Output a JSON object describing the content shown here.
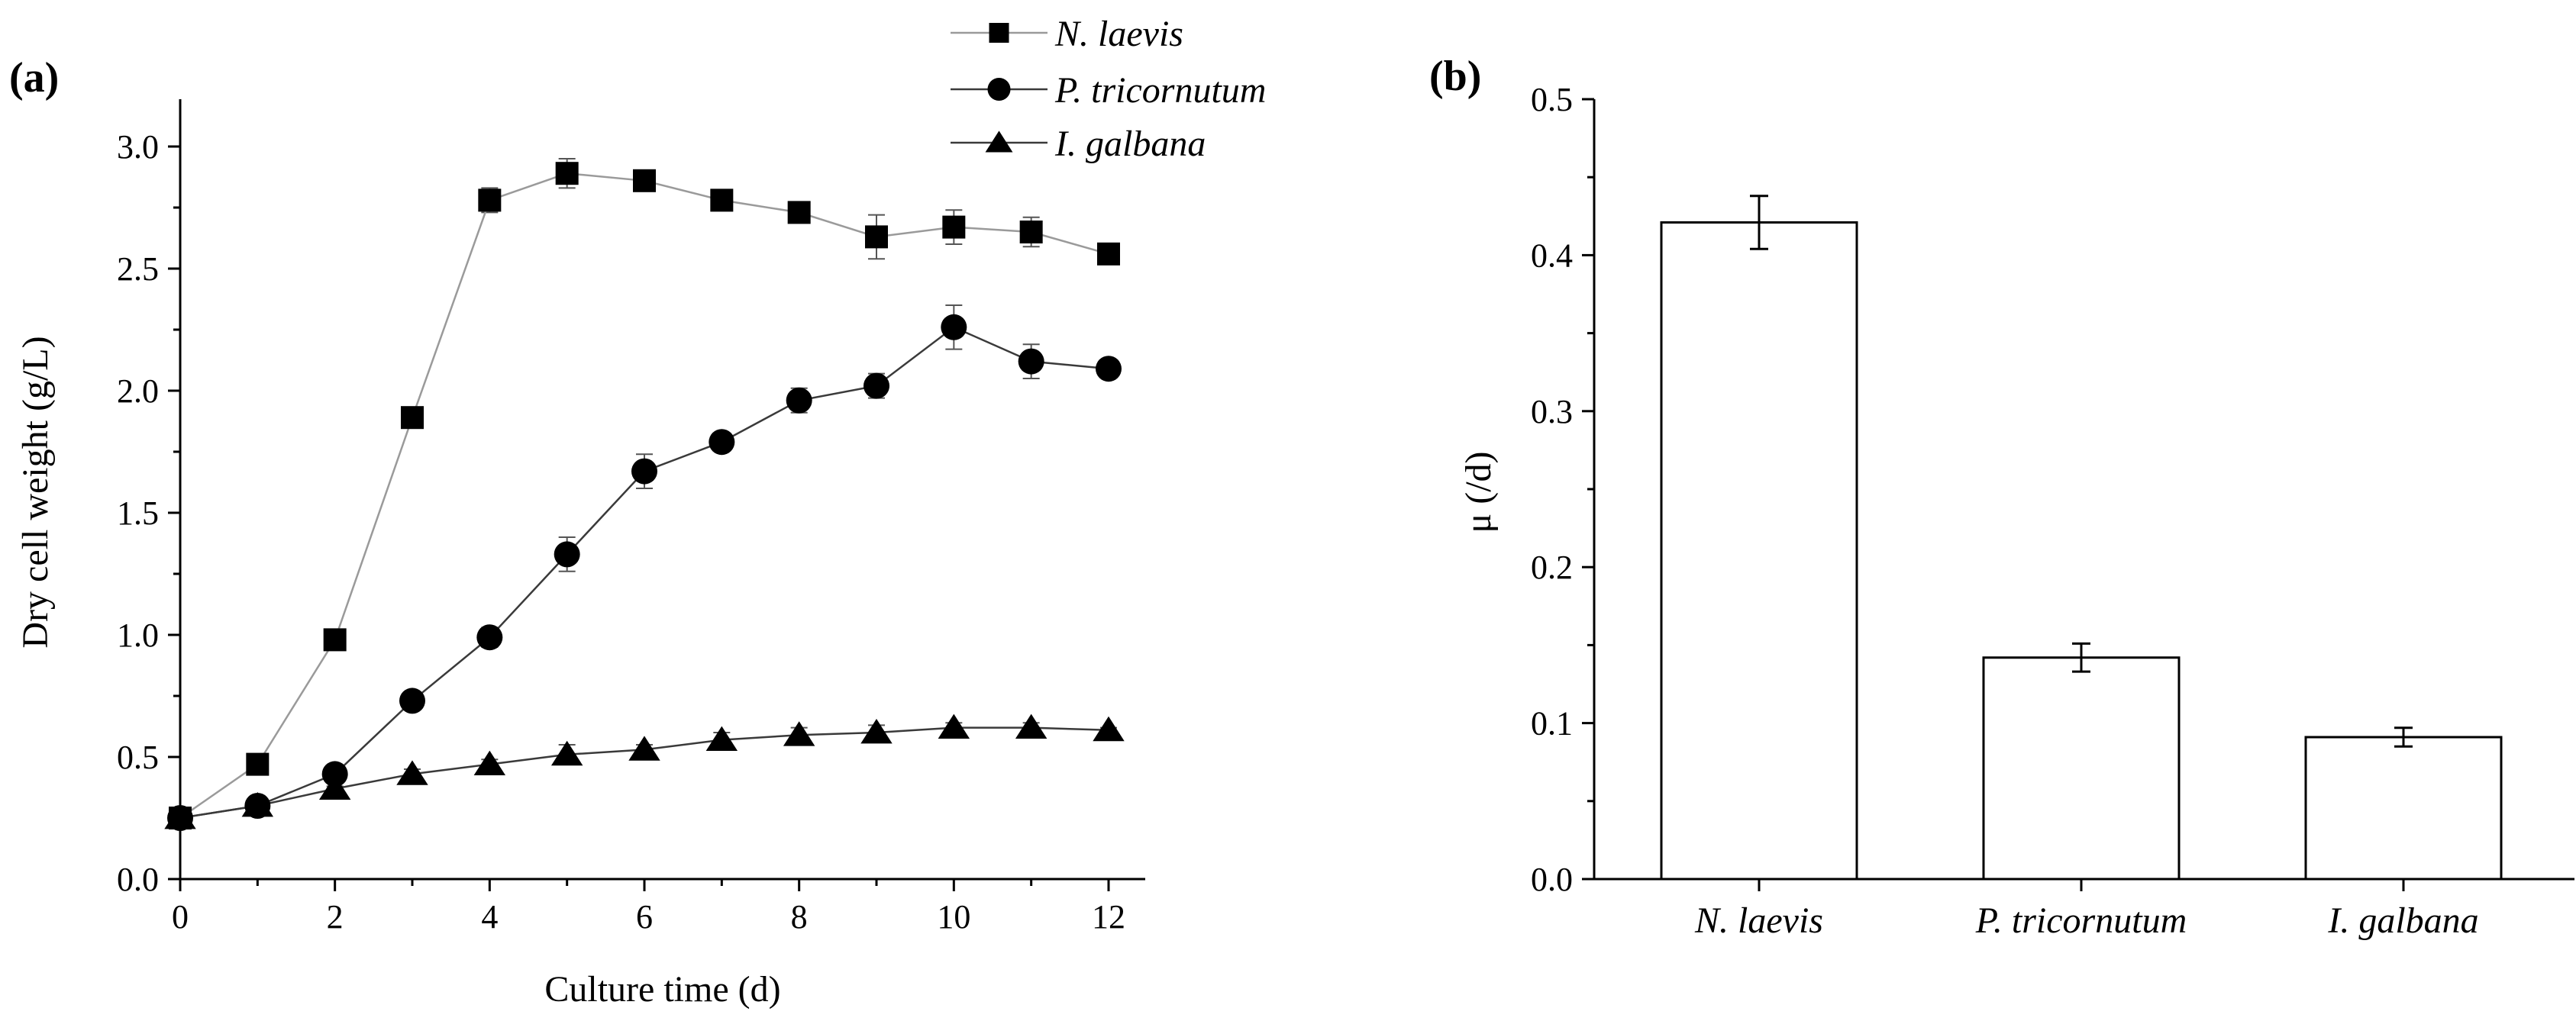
{
  "chart_data": [
    {
      "type": "line",
      "panel_label": "(a)",
      "xlabel": "Culture time (d)",
      "ylabel": "Dry cell weight (g/L)",
      "xlim": [
        0,
        12.5
      ],
      "ylim": [
        0,
        3.2
      ],
      "xticks": [
        0,
        2,
        4,
        6,
        8,
        10,
        12
      ],
      "xtick_labels": [
        "0",
        "2",
        "4",
        "6",
        "8",
        "10",
        "12"
      ],
      "yticks": [
        0,
        0.5,
        1.0,
        1.5,
        2.0,
        2.5,
        3.0
      ],
      "ytick_labels": [
        "0.0",
        "0.5",
        "1.0",
        "1.5",
        "2.0",
        "2.5",
        "3.0"
      ],
      "legend_position": "top-center",
      "x": [
        0,
        1,
        2,
        3,
        4,
        5,
        6,
        7,
        8,
        9,
        10,
        11,
        12
      ],
      "series": [
        {
          "name": "N. laevis",
          "marker": "square",
          "line_color": "#9a9a9a",
          "values": [
            0.25,
            0.47,
            0.98,
            1.89,
            2.78,
            2.89,
            2.86,
            2.78,
            2.73,
            2.63,
            2.67,
            2.65,
            2.56
          ],
          "errors": [
            0.01,
            0.01,
            0.04,
            0.04,
            0.05,
            0.06,
            0.02,
            0.02,
            0.04,
            0.09,
            0.07,
            0.06,
            0.02
          ]
        },
        {
          "name": "P. tricornutum",
          "marker": "circle",
          "line_color": "#3a3a3a",
          "values": [
            0.25,
            0.3,
            0.43,
            0.73,
            0.99,
            1.33,
            1.67,
            1.79,
            1.96,
            2.02,
            2.26,
            2.12,
            2.09
          ],
          "errors": [
            0.01,
            0.01,
            0.02,
            0.02,
            0.04,
            0.07,
            0.07,
            0.02,
            0.05,
            0.05,
            0.09,
            0.07,
            0.02
          ]
        },
        {
          "name": "I. galbana",
          "marker": "triangle",
          "line_color": "#3a3a3a",
          "values": [
            0.25,
            0.3,
            0.37,
            0.43,
            0.47,
            0.51,
            0.53,
            0.57,
            0.59,
            0.6,
            0.62,
            0.62,
            0.61
          ],
          "errors": [
            0.01,
            0.01,
            0.01,
            0.02,
            0.02,
            0.04,
            0.02,
            0.03,
            0.03,
            0.03,
            0.02,
            0.02,
            0.01
          ]
        }
      ]
    },
    {
      "type": "bar",
      "panel_label": "(b)",
      "xlabel": "",
      "ylabel": "μ (/d)",
      "ylim": [
        0,
        0.5
      ],
      "yticks": [
        0,
        0.1,
        0.2,
        0.3,
        0.4,
        0.5
      ],
      "ytick_labels": [
        "0.0",
        "0.1",
        "0.2",
        "0.3",
        "0.4",
        "0.5"
      ],
      "categories": [
        "N. laevis",
        "P. tricornutum",
        "I. galbana"
      ],
      "values": [
        0.421,
        0.142,
        0.091
      ],
      "errors": [
        0.017,
        0.009,
        0.006
      ]
    }
  ]
}
